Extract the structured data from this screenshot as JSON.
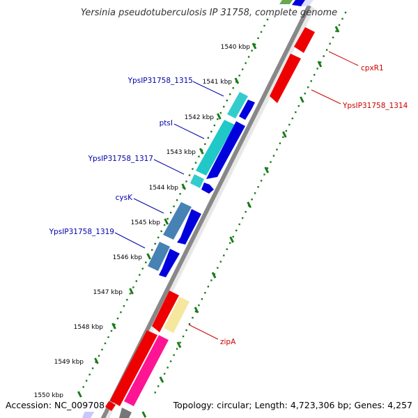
{
  "title": "Yersinia pseudotuberculosis IP 31758, complete genome",
  "footer": {
    "accession": "Accession: NC_009708",
    "topology": "Topology: circular; Length: 4,723,306 bp; Genes: 4,257"
  },
  "ruler_ticks": [
    "1540 kbp",
    "1541 kbp",
    "1542 kbp",
    "1543 kbp",
    "1544 kbp",
    "1545 kbp",
    "1546 kbp",
    "1547 kbp",
    "1548 kbp",
    "1549 kbp",
    "1550 kbp"
  ],
  "gene_labels": [
    {
      "name": "cpxR1",
      "strand": "reverse"
    },
    {
      "name": "YpsIP31758_1314",
      "strand": "reverse"
    },
    {
      "name": "YpsIP31758_1315",
      "strand": "forward"
    },
    {
      "name": "ptsI",
      "strand": "forward"
    },
    {
      "name": "YpsIP31758_1317",
      "strand": "forward"
    },
    {
      "name": "cysK",
      "strand": "forward"
    },
    {
      "name": "YpsIP31758_1319",
      "strand": "forward"
    },
    {
      "name": "zipA",
      "strand": "reverse"
    }
  ],
  "colors": {
    "forward_label": "#0000aa",
    "reverse_label": "#cc0000",
    "forward_arrow": "#0000dd",
    "reverse_arrow": "#ee0000",
    "dots": "#1a7a1a",
    "backbone": "#888888"
  }
}
